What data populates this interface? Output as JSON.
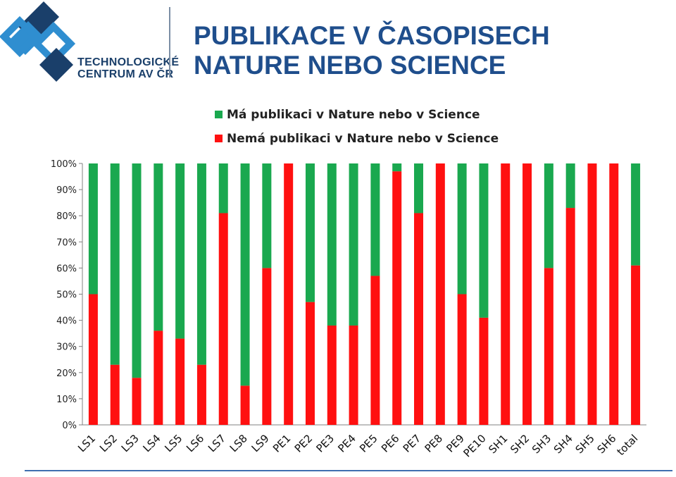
{
  "header": {
    "title_line1": "PUBLIKACE V ČASOPISECH",
    "title_line2": "NATURE NEBO SCIENCE",
    "logo_line1": "TECHNOLOGICKÉ",
    "logo_line2": "CENTRUM AV ČR"
  },
  "colors": {
    "green": "#1aa84f",
    "red": "#ff1010",
    "title": "#1f4e8c",
    "logo_blue": "#2f8ed0",
    "logo_dark": "#1a3f6a"
  },
  "chart_data": {
    "type": "bar",
    "stacked": true,
    "percent": true,
    "categories": [
      "LS1",
      "LS2",
      "LS3",
      "LS4",
      "LS5",
      "LS6",
      "LS7",
      "LS8",
      "LS9",
      "PE1",
      "PE2",
      "PE3",
      "PE4",
      "PE5",
      "PE6",
      "PE7",
      "PE8",
      "PE9",
      "PE10",
      "SH1",
      "SH2",
      "SH3",
      "SH4",
      "SH5",
      "SH6",
      "total"
    ],
    "series": [
      {
        "name": "Nemá publikaci v Nature nebo v Science",
        "color": "#ff1010",
        "values": [
          50,
          23,
          18,
          36,
          33,
          23,
          81,
          15,
          60,
          100,
          47,
          38,
          38,
          57,
          97,
          81,
          100,
          50,
          41,
          100,
          100,
          60,
          83,
          100,
          100,
          61
        ]
      },
      {
        "name": "Má publikaci v Nature nebo v Science",
        "color": "#1aa84f",
        "values": [
          50,
          77,
          82,
          64,
          67,
          77,
          19,
          85,
          40,
          0,
          53,
          62,
          62,
          43,
          3,
          19,
          0,
          50,
          59,
          0,
          0,
          40,
          17,
          0,
          0,
          39
        ]
      }
    ],
    "ylim": [
      0,
      100
    ],
    "yticks": [
      "0%",
      "10%",
      "20%",
      "30%",
      "40%",
      "50%",
      "60%",
      "70%",
      "80%",
      "90%",
      "100%"
    ],
    "legend": [
      "Má publikaci v Nature nebo v Science",
      "Nemá publikaci v Nature nebo v Science"
    ],
    "legend_position": "top",
    "grid": false
  }
}
